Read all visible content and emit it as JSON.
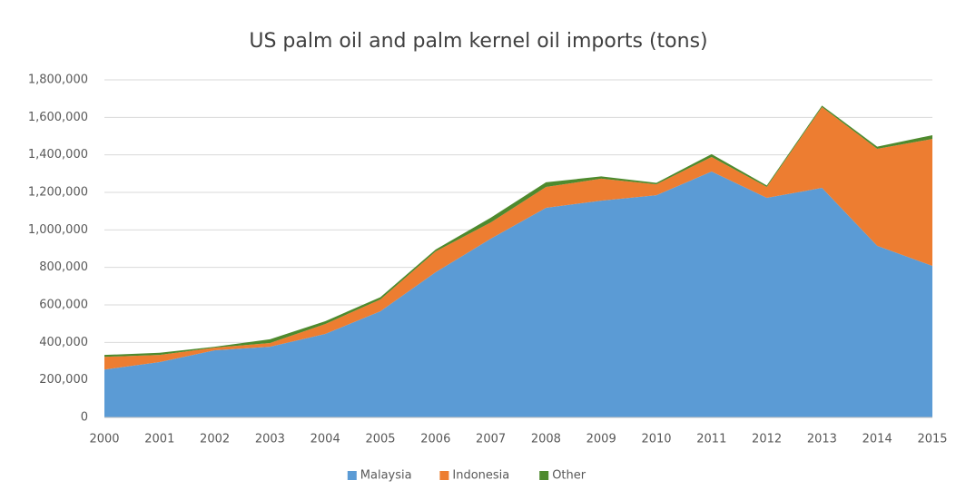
{
  "chart_data": {
    "type": "stacked_area",
    "title": "US palm oil and palm kernel oil imports (tons)",
    "categories": [
      "2000",
      "2001",
      "2002",
      "2003",
      "2004",
      "2005",
      "2006",
      "2007",
      "2008",
      "2009",
      "2010",
      "2011",
      "2012",
      "2013",
      "2014",
      "2015"
    ],
    "series": [
      {
        "name": "Malaysia",
        "color": "#5b9bd5",
        "values": [
          255000,
          295000,
          358000,
          377000,
          445000,
          566000,
          774000,
          953000,
          1118000,
          1156000,
          1185000,
          1311000,
          1171000,
          1224000,
          915000,
          808000
        ]
      },
      {
        "name": "Indonesia",
        "color": "#ed7d31",
        "values": [
          68000,
          38000,
          14000,
          20000,
          53000,
          63000,
          111000,
          87000,
          111000,
          117000,
          58000,
          78000,
          58000,
          431000,
          517000,
          677000
        ]
      },
      {
        "name": "Other",
        "color": "#4e8a2e",
        "values": [
          10000,
          12000,
          5000,
          20000,
          15000,
          12000,
          10000,
          25000,
          25000,
          12000,
          8000,
          15000,
          8000,
          8000,
          12000,
          20000
        ]
      }
    ],
    "ylim": [
      0,
      1800000
    ],
    "yticks": [
      0,
      {
        "value": 200000,
        "label": "200,000"
      },
      {
        "value": 400000,
        "label": "400,000"
      },
      {
        "value": 600000,
        "label": "600,000"
      },
      {
        "value": 800000,
        "label": "800,000"
      },
      {
        "value": 1000000,
        "label": "1,000,000"
      },
      {
        "value": 1200000,
        "label": "1,200,000"
      },
      {
        "value": 1400000,
        "label": "1,400,000"
      },
      {
        "value": 1600000,
        "label": "1,600,000"
      },
      {
        "value": 1800000,
        "label": "1,800,000"
      }
    ],
    "grid": true,
    "legend": "bottom"
  }
}
